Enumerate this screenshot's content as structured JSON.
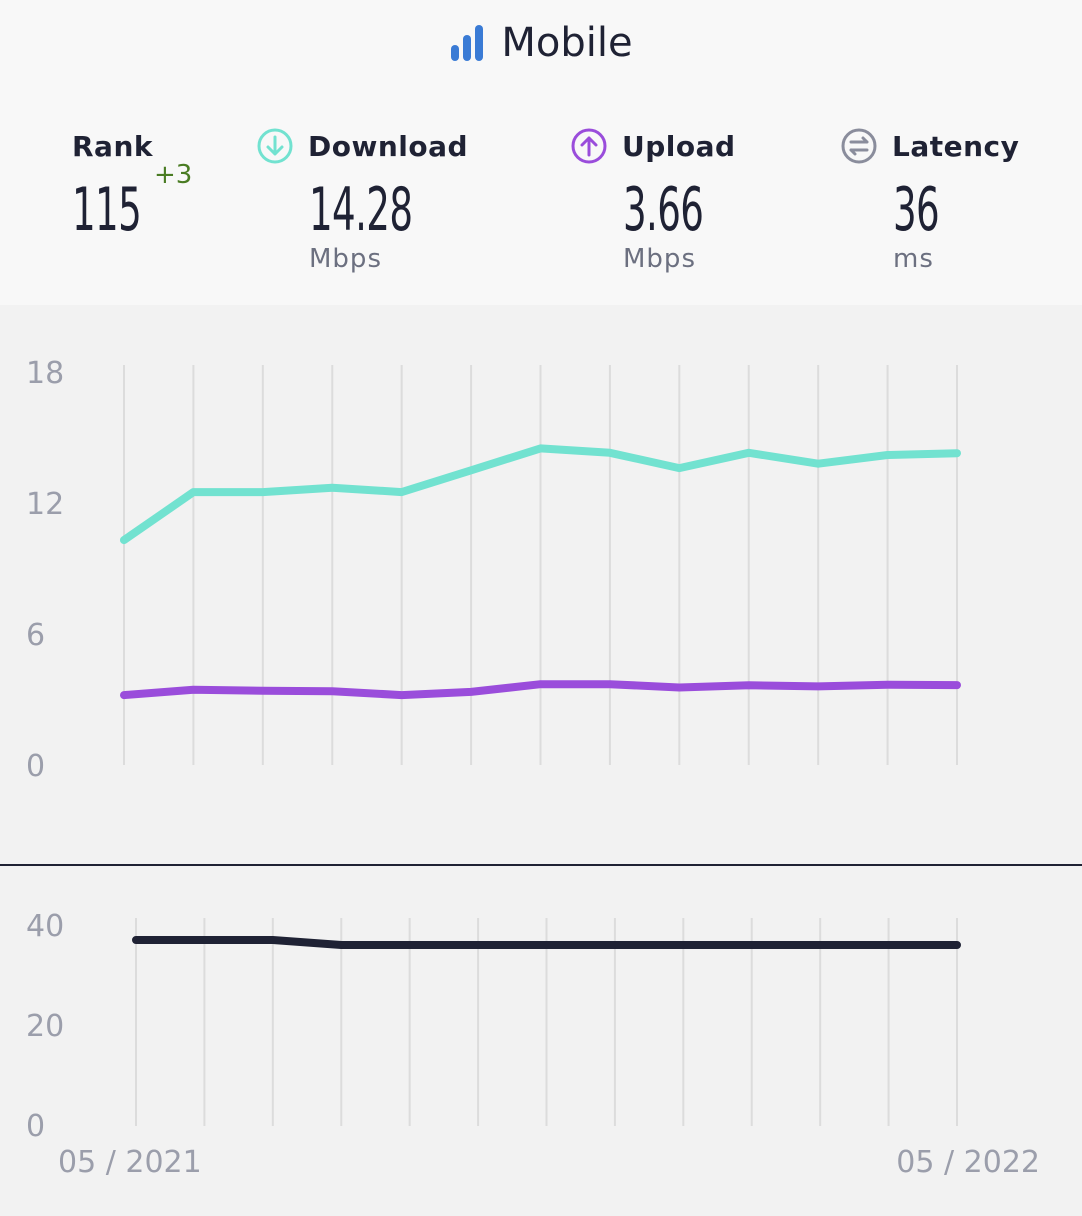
{
  "header": {
    "title": "Mobile",
    "icon": "signal-bars-icon"
  },
  "stats": {
    "rank": {
      "label": "Rank",
      "value": "115",
      "change": "+3"
    },
    "download": {
      "label": "Download",
      "value": "14.28",
      "unit": "Mbps",
      "icon": "arrow-down-circle-icon"
    },
    "upload": {
      "label": "Upload",
      "value": "3.66",
      "unit": "Mbps",
      "icon": "arrow-up-circle-icon"
    },
    "latency": {
      "label": "Latency",
      "value": "36",
      "unit": "ms",
      "icon": "swap-arrows-circle-icon"
    }
  },
  "colors": {
    "download": "#72e2d0",
    "upload": "#9a4ddb",
    "latency": "#1f2234",
    "grid": "#dcdcdc",
    "tick": "#9b9eab",
    "rank_change": "#4a7c23",
    "title_icon": "#3a7bd5"
  },
  "chart_data": [
    {
      "type": "line",
      "title": "",
      "xlabel": "",
      "ylabel": "",
      "ylim": [
        0,
        18
      ],
      "yticks": [
        0,
        6,
        12,
        18
      ],
      "grid": "vertical",
      "series": [
        {
          "values": [
            10.3,
            12.5,
            12.5,
            12.7,
            12.5,
            13.5,
            14.5,
            14.3,
            13.6,
            14.3,
            13.8,
            14.2,
            14.28
          ]
        },
        {
          "values": [
            3.2,
            3.45,
            3.4,
            3.38,
            3.2,
            3.35,
            3.7,
            3.7,
            3.55,
            3.65,
            3.6,
            3.68,
            3.66
          ]
        }
      ]
    },
    {
      "type": "line",
      "title": "",
      "xlabel": "",
      "ylabel": "",
      "ylim": [
        0,
        40
      ],
      "yticks": [
        0,
        20,
        40
      ],
      "grid": "vertical",
      "x_labels": [
        "05 / 2021",
        "05 / 2022"
      ],
      "series": [
        {
          "values": [
            37,
            37,
            37,
            36,
            36,
            36,
            36,
            36,
            36,
            36,
            36,
            36,
            36
          ]
        }
      ]
    }
  ]
}
